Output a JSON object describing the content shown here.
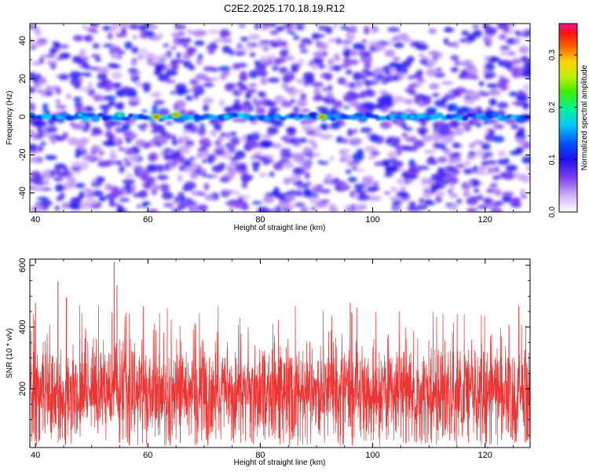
{
  "title": "C2E2.2025.170.18.19.R12",
  "chart_data": [
    {
      "type": "heatmap",
      "xlabel": "Height of straight line (km)",
      "ylabel": "Frequency (Hz)",
      "xlim": [
        39,
        128
      ],
      "ylim": [
        -50,
        49
      ],
      "xticks": [
        40,
        60,
        80,
        100,
        120
      ],
      "yticks": [
        -40,
        -20,
        0,
        20,
        40
      ],
      "colorbar": {
        "label": "Normalized spectral amplitude",
        "range": [
          0.0,
          0.36
        ],
        "ticks": [
          "0.0",
          "0.1",
          "0.2",
          "0.3"
        ],
        "tick_values": [
          0.0,
          0.1,
          0.2,
          0.3
        ]
      },
      "features": {
        "band_center_hz": 0,
        "band_typical_amplitude": 0.12,
        "background_amplitude_range": [
          0.0,
          0.08
        ],
        "peaks": [
          {
            "x": 61.5,
            "y": 0,
            "amplitude": 0.33
          },
          {
            "x": 65,
            "y": 1,
            "amplitude": 0.31
          },
          {
            "x": 91,
            "y": 0,
            "amplitude": 0.32
          },
          {
            "x": 55,
            "y": 1,
            "amplitude": 0.22
          },
          {
            "x": 74,
            "y": 0,
            "amplitude": 0.19
          },
          {
            "x": 48,
            "y": 1,
            "amplitude": 0.18
          },
          {
            "x": 107,
            "y": 0,
            "amplitude": 0.18
          }
        ]
      }
    },
    {
      "type": "line",
      "xlabel": "Height of straight line (km)",
      "ylabel": "SNR (10 * v/v)",
      "xlim": [
        39,
        128
      ],
      "ylim": [
        10,
        620
      ],
      "xticks": [
        40,
        60,
        80,
        100,
        120
      ],
      "yticks": [
        200,
        400,
        600
      ],
      "series": [
        {
          "color": "#ee3333",
          "baseline_mean": 190,
          "typical_range": [
            60,
            380
          ],
          "peaks": [
            {
              "x": 54,
              "y": 612
            },
            {
              "x": 44,
              "y": 548
            },
            {
              "x": 54.5,
              "y": 535
            },
            {
              "x": 45.5,
              "y": 495
            },
            {
              "x": 40,
              "y": 478
            },
            {
              "x": 96,
              "y": 478
            },
            {
              "x": 126,
              "y": 468
            }
          ]
        }
      ]
    }
  ]
}
